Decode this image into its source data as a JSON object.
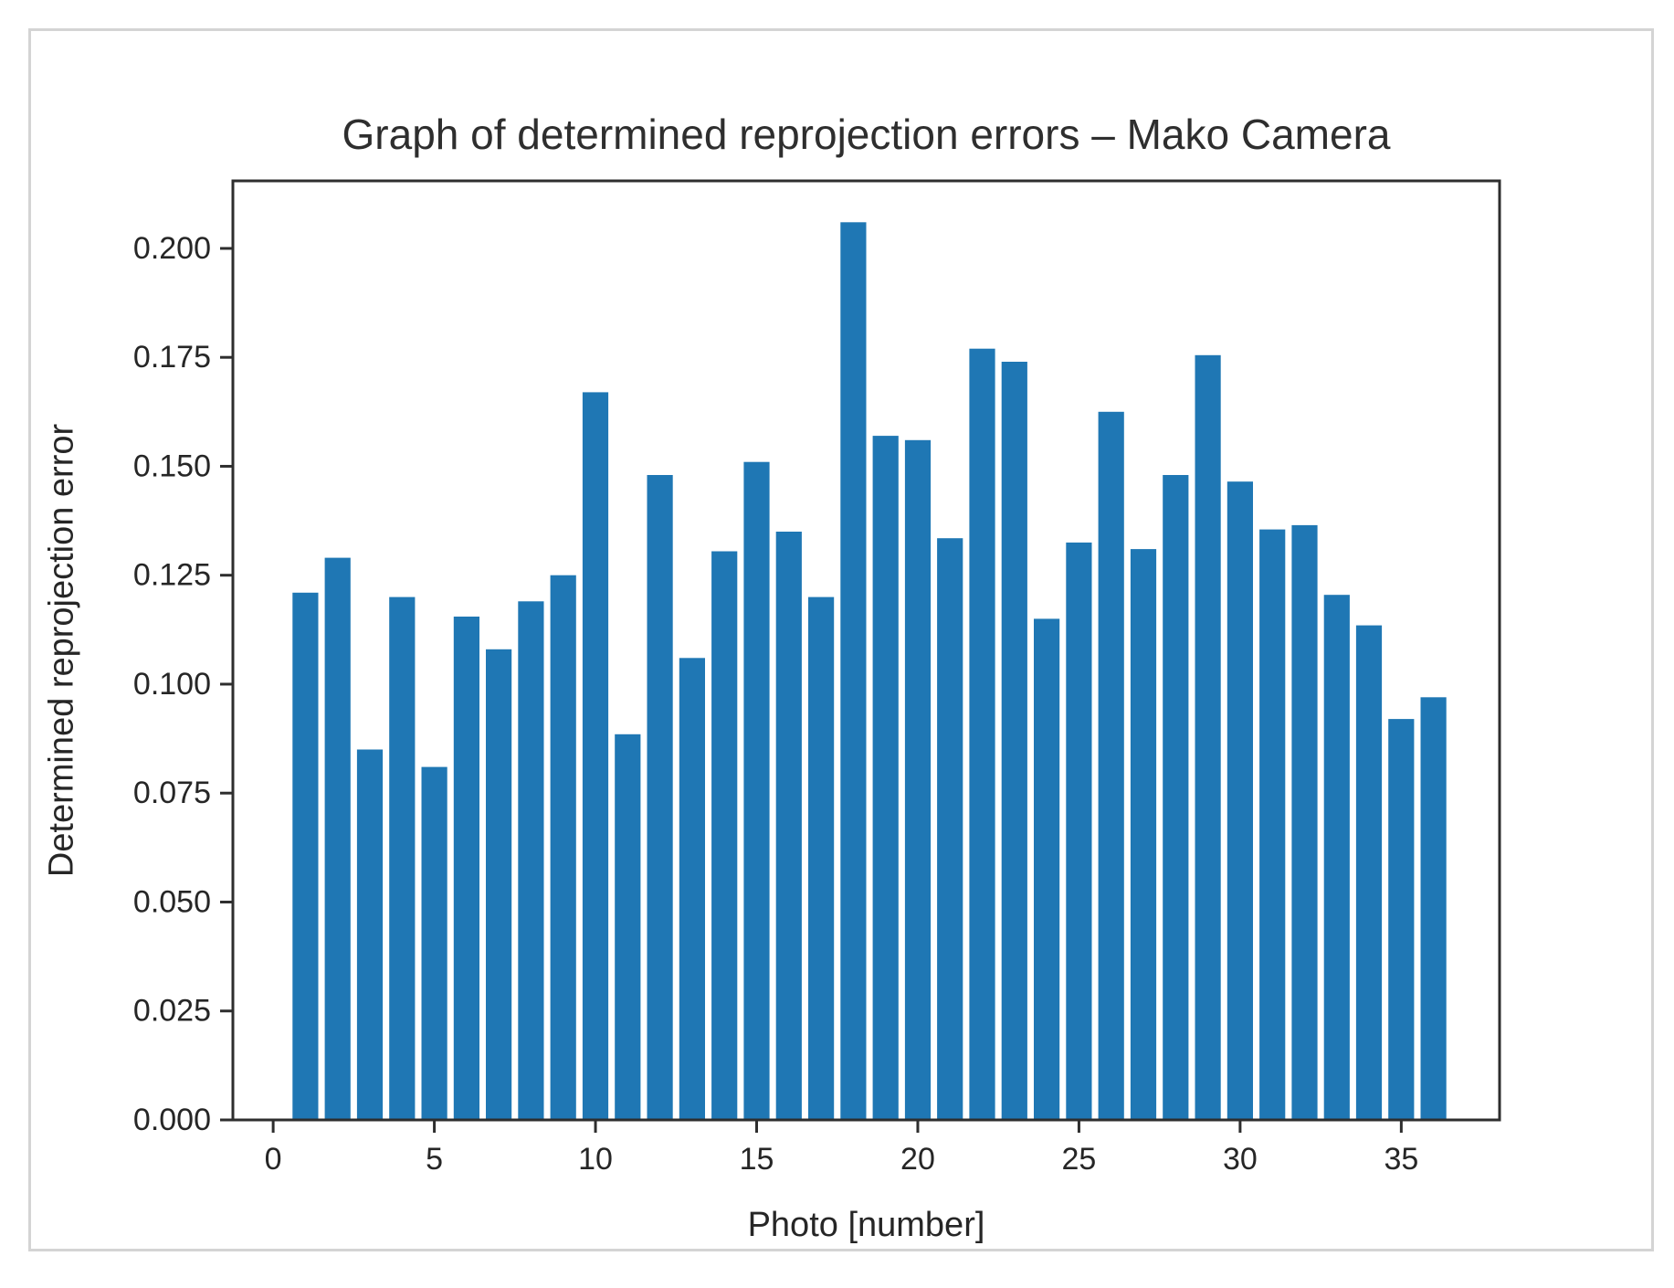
{
  "page": {
    "background_color": "#ffffff",
    "frame_border_color": "#d4d4d4"
  },
  "chart_data": {
    "type": "bar",
    "title": "Graph of determined reprojection errors – Mako Camera",
    "xlabel": "Photo [number]",
    "ylabel": "Determined reprojection error",
    "x": [
      1,
      2,
      3,
      4,
      5,
      6,
      7,
      8,
      9,
      10,
      11,
      12,
      13,
      14,
      15,
      16,
      17,
      18,
      19,
      20,
      21,
      22,
      23,
      24,
      25,
      26,
      27,
      28,
      29,
      30,
      31,
      32,
      33,
      34,
      35,
      36
    ],
    "values": [
      0.121,
      0.129,
      0.085,
      0.12,
      0.081,
      0.1155,
      0.108,
      0.119,
      0.125,
      0.167,
      0.0885,
      0.148,
      0.106,
      0.1305,
      0.151,
      0.135,
      0.12,
      0.206,
      0.157,
      0.156,
      0.1335,
      0.177,
      0.174,
      0.115,
      0.1325,
      0.1625,
      0.131,
      0.148,
      0.1755,
      0.1465,
      0.1355,
      0.1365,
      0.1205,
      0.1135,
      0.092,
      0.097
    ],
    "bar_color": "#1f77b4",
    "bar_width_units": 0.8,
    "xlim": [
      -1.25,
      38.05
    ],
    "ylim": [
      0,
      0.2155
    ],
    "xtick_values": [
      0,
      5,
      10,
      15,
      20,
      25,
      30,
      35
    ],
    "xtick_labels": [
      "0",
      "5",
      "10",
      "15",
      "20",
      "25",
      "30",
      "35"
    ],
    "ytick_values": [
      0.0,
      0.025,
      0.05,
      0.075,
      0.1,
      0.125,
      0.15,
      0.175,
      0.2
    ],
    "ytick_labels": [
      "0.000",
      "0.025",
      "0.050",
      "0.075",
      "0.100",
      "0.125",
      "0.150",
      "0.175",
      "0.200"
    ],
    "grid": false,
    "legend": null,
    "axis_color": "#2e2e2e",
    "text_color": "#262626"
  }
}
